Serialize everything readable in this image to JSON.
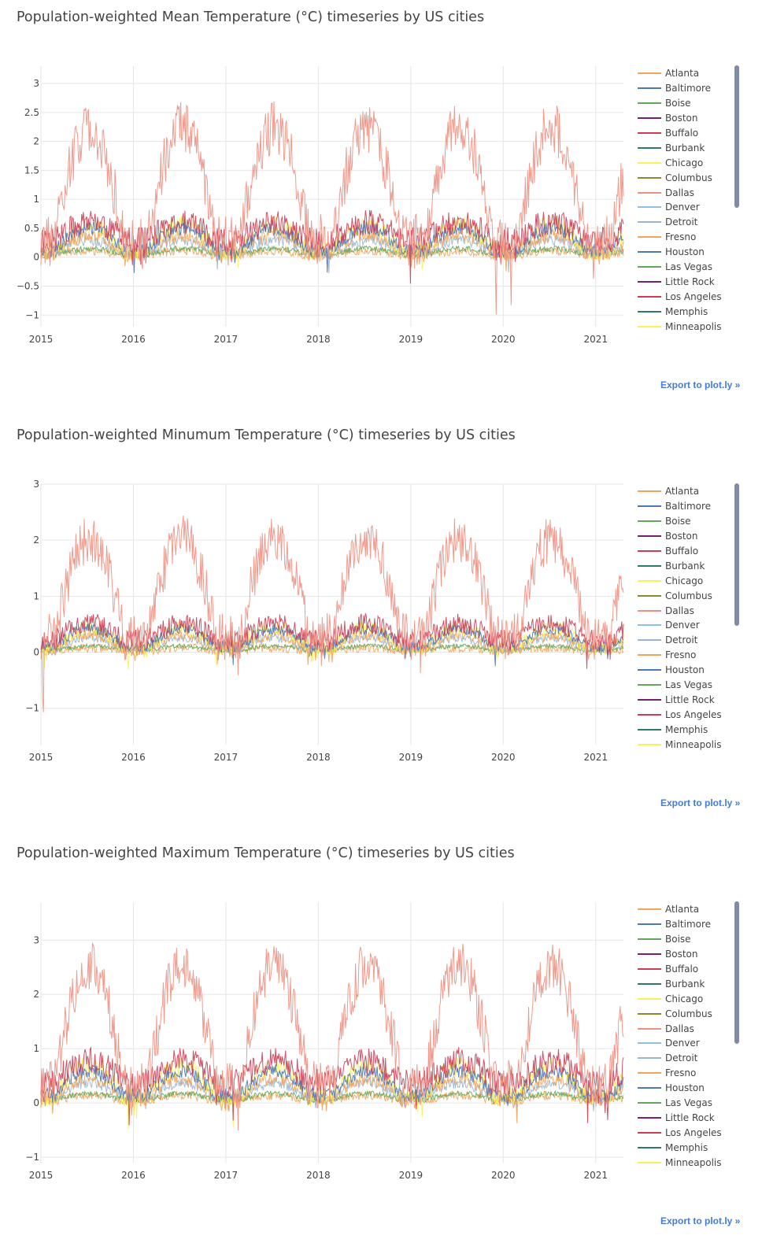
{
  "export_label": "Export to plot.ly »",
  "legend": [
    {
      "name": "Atlanta",
      "color": "#f2a45a"
    },
    {
      "name": "Baltimore",
      "color": "#4a78b8"
    },
    {
      "name": "Boise",
      "color": "#5fa85a"
    },
    {
      "name": "Boston",
      "color": "#7a1f6e"
    },
    {
      "name": "Buffalo",
      "color": "#cc3d55"
    },
    {
      "name": "Burbank",
      "color": "#2e7a6a"
    },
    {
      "name": "Chicago",
      "color": "#f5f25a"
    },
    {
      "name": "Columbus",
      "color": "#8a8a2a"
    },
    {
      "name": "Dallas",
      "color": "#ee8f80"
    },
    {
      "name": "Denver",
      "color": "#8fc0e0"
    },
    {
      "name": "Detroit",
      "color": "#9ab5cf"
    },
    {
      "name": "Fresno",
      "color": "#f2a45a"
    },
    {
      "name": "Houston",
      "color": "#4a78b8"
    },
    {
      "name": "Las Vegas",
      "color": "#5fa85a"
    },
    {
      "name": "Little Rock",
      "color": "#7a1f6e"
    },
    {
      "name": "Los Angeles",
      "color": "#cc3d55"
    },
    {
      "name": "Memphis",
      "color": "#2e7a6a"
    },
    {
      "name": "Minneapolis",
      "color": "#f5f25a"
    }
  ],
  "chart_data": [
    {
      "type": "line",
      "title": "Population-weighted Mean Temperature (°C) timeseries by US cities",
      "xlabel": "",
      "ylabel": "",
      "xlim": [
        2015.0,
        2021.3
      ],
      "ylim": [
        -1.2,
        3.3
      ],
      "x_ticks": [
        "2015",
        "2016",
        "2017",
        "2018",
        "2019",
        "2020",
        "2021"
      ],
      "y_ticks": [
        "3",
        "2.5",
        "2",
        "1.5",
        "1",
        "0.5",
        "0",
        "−0.5",
        "−1"
      ],
      "y_tick_values": [
        3,
        2.5,
        2,
        1.5,
        1,
        0.5,
        0,
        -0.5,
        -1
      ],
      "legend_position": "right",
      "grid": true,
      "series_approx": [
        {
          "name": "Dallas",
          "baseline": 0.75,
          "amplitude": 1.95,
          "noise": 0.45
        },
        {
          "name": "Los Angeles",
          "baseline": 0.75,
          "amplitude": 0.3,
          "noise": 0.22
        },
        {
          "name": "Houston",
          "baseline": 0.3,
          "amplitude": 0.38,
          "noise": 0.12
        },
        {
          "name": "Chicago",
          "baseline": 0.25,
          "amplitude": 0.45,
          "noise": 0.16
        },
        {
          "name": "Atlanta",
          "baseline": 0.2,
          "amplitude": 0.3,
          "noise": 0.12
        },
        {
          "name": "Detroit",
          "baseline": 0.2,
          "amplitude": 0.22,
          "noise": 0.1
        },
        {
          "name": "Boise",
          "baseline": 0.12,
          "amplitude": 0.1,
          "noise": 0.05
        },
        {
          "name": "Fresno",
          "baseline": 0.08,
          "amplitude": 0.08,
          "noise": 0.08
        }
      ]
    },
    {
      "type": "line",
      "title": "Population-weighted Minumum Temperature (°C) timeseries by US cities",
      "xlabel": "",
      "ylabel": "",
      "xlim": [
        2015.0,
        2021.3
      ],
      "ylim": [
        -1.65,
        3.0
      ],
      "x_ticks": [
        "2015",
        "2016",
        "2017",
        "2018",
        "2019",
        "2020",
        "2021"
      ],
      "y_ticks": [
        "3",
        "2",
        "1",
        "0",
        "−1"
      ],
      "y_tick_values": [
        3,
        2,
        1,
        0,
        -1
      ],
      "legend_position": "right",
      "grid": true,
      "series_approx": [
        {
          "name": "Dallas",
          "baseline": 0.7,
          "amplitude": 1.75,
          "noise": 0.42
        },
        {
          "name": "Los Angeles",
          "baseline": 0.55,
          "amplitude": 0.3,
          "noise": 0.18
        },
        {
          "name": "Houston",
          "baseline": 0.25,
          "amplitude": 0.32,
          "noise": 0.1
        },
        {
          "name": "Chicago",
          "baseline": 0.2,
          "amplitude": 0.35,
          "noise": 0.14
        },
        {
          "name": "Atlanta",
          "baseline": 0.15,
          "amplitude": 0.25,
          "noise": 0.1
        },
        {
          "name": "Detroit",
          "baseline": 0.15,
          "amplitude": 0.2,
          "noise": 0.08
        },
        {
          "name": "Boise",
          "baseline": 0.08,
          "amplitude": 0.08,
          "noise": 0.04
        },
        {
          "name": "Fresno",
          "baseline": 0.05,
          "amplitude": 0.06,
          "noise": 0.08
        }
      ]
    },
    {
      "type": "line",
      "title": "Population-weighted Maximum Temperature (°C) timeseries by US cities",
      "xlabel": "",
      "ylabel": "",
      "xlim": [
        2015.0,
        2021.3
      ],
      "ylim": [
        -1.1,
        3.7
      ],
      "x_ticks": [
        "2015",
        "2016",
        "2017",
        "2018",
        "2019",
        "2020",
        "2021"
      ],
      "y_ticks": [
        "3",
        "2",
        "1",
        "0",
        "−1"
      ],
      "y_tick_values": [
        3,
        2,
        1,
        0,
        -1
      ],
      "legend_position": "right",
      "grid": true,
      "series_approx": [
        {
          "name": "Dallas",
          "baseline": 0.85,
          "amplitude": 2.2,
          "noise": 0.45
        },
        {
          "name": "Los Angeles",
          "baseline": 0.95,
          "amplitude": 0.4,
          "noise": 0.25
        },
        {
          "name": "Houston",
          "baseline": 0.35,
          "amplitude": 0.45,
          "noise": 0.13
        },
        {
          "name": "Chicago",
          "baseline": 0.3,
          "amplitude": 0.55,
          "noise": 0.18
        },
        {
          "name": "Atlanta",
          "baseline": 0.25,
          "amplitude": 0.35,
          "noise": 0.12
        },
        {
          "name": "Detroit",
          "baseline": 0.22,
          "amplitude": 0.28,
          "noise": 0.1
        },
        {
          "name": "Boise",
          "baseline": 0.14,
          "amplitude": 0.12,
          "noise": 0.05
        },
        {
          "name": "Fresno",
          "baseline": 0.1,
          "amplitude": 0.1,
          "noise": 0.08
        }
      ]
    }
  ]
}
